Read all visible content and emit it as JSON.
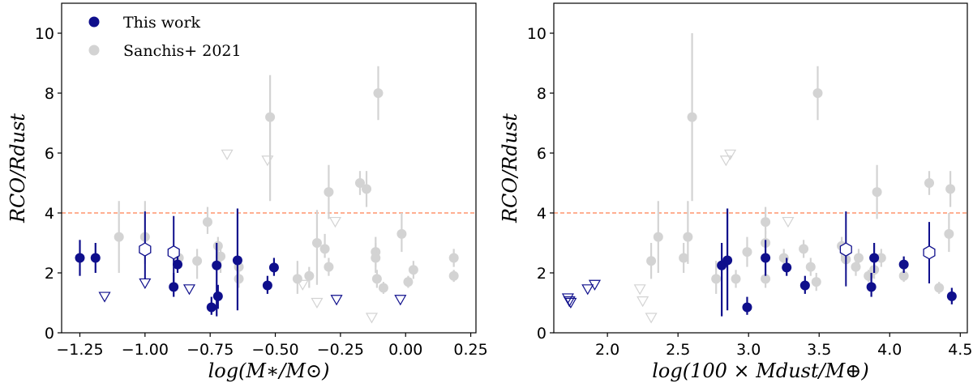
{
  "colors": {
    "this_work": "#0f0f8c",
    "sanchis": "#d3d3d3",
    "threshold": "#ff7f50"
  },
  "legend": {
    "this_work": "This work",
    "sanchis": "Sanchis+ 2021"
  },
  "chart_data": [
    {
      "type": "scatter",
      "xlabel": "log(M∗/M⊙)",
      "ylabel": "RCO/Rdust",
      "xlim": [
        -1.32,
        0.27
      ],
      "ylim": [
        0,
        11
      ],
      "xticks": [
        "-1.25",
        "-1.00",
        "-0.75",
        "-0.50",
        "-0.25",
        "0.00",
        "0.25"
      ],
      "xtick_values": [
        -1.25,
        -1.0,
        -0.75,
        -0.5,
        -0.25,
        0.0,
        0.25
      ],
      "yticks": [
        "0",
        "2",
        "4",
        "6",
        "8",
        "10"
      ],
      "ytick_values": [
        0,
        2,
        4,
        6,
        8,
        10
      ],
      "hline": 4,
      "series": [
        {
          "name": "This work",
          "points": [
            {
              "x": -1.25,
              "y": 2.5,
              "lo": 1.9,
              "hi": 3.1
            },
            {
              "x": -1.19,
              "y": 2.5,
              "lo": 2.0,
              "hi": 3.0
            },
            {
              "x": -0.89,
              "y": 1.53,
              "lo": 1.2,
              "hi": 2.0
            },
            {
              "x": -0.875,
              "y": 2.28,
              "lo": 2.0,
              "hi": 2.55
            },
            {
              "x": -0.745,
              "y": 0.85,
              "lo": 0.6,
              "hi": 1.2
            },
            {
              "x": -0.725,
              "y": 2.25,
              "lo": 0.55,
              "hi": 3.0
            },
            {
              "x": -0.72,
              "y": 1.22,
              "lo": 0.8,
              "hi": 1.6
            },
            {
              "x": -0.645,
              "y": 2.42,
              "lo": 0.75,
              "hi": 4.15
            },
            {
              "x": -0.53,
              "y": 1.58,
              "lo": 1.3,
              "hi": 1.9
            },
            {
              "x": -0.505,
              "y": 2.18,
              "lo": 1.9,
              "hi": 2.5
            }
          ],
          "open_hexagons": [
            {
              "x": -1.0,
              "y": 2.78,
              "lo": 1.8,
              "hi": 4.05
            },
            {
              "x": -0.89,
              "y": 2.68,
              "lo": 1.6,
              "hi": 3.9
            }
          ],
          "upper_limits": [
            {
              "x": -1.155,
              "y": 1.2
            },
            {
              "x": -1.0,
              "y": 1.65
            },
            {
              "x": -0.83,
              "y": 1.45
            },
            {
              "x": -0.265,
              "y": 1.1
            },
            {
              "x": -0.02,
              "y": 1.1
            }
          ]
        },
        {
          "name": "Sanchis+ 2021",
          "points": [
            {
              "x": -1.1,
              "y": 3.2,
              "lo": 2.0,
              "hi": 4.4
            },
            {
              "x": -1.0,
              "y": 3.2,
              "lo": 2.3,
              "hi": 4.4
            },
            {
              "x": -0.87,
              "y": 2.5,
              "lo": 2.2,
              "hi": 2.8
            },
            {
              "x": -0.8,
              "y": 2.4,
              "lo": 1.8,
              "hi": 2.8
            },
            {
              "x": -0.76,
              "y": 3.7,
              "lo": 3.3,
              "hi": 4.2
            },
            {
              "x": -0.72,
              "y": 2.9,
              "lo": 2.4,
              "hi": 3.2
            },
            {
              "x": -0.71,
              "y": 2.55,
              "lo": 2.0,
              "hi": 3.0
            },
            {
              "x": -0.64,
              "y": 2.2,
              "lo": 1.9,
              "hi": 2.5
            },
            {
              "x": -0.64,
              "y": 1.8,
              "lo": 1.5,
              "hi": 2.1
            },
            {
              "x": -0.52,
              "y": 7.2,
              "lo": 4.4,
              "hi": 8.6
            },
            {
              "x": -0.415,
              "y": 1.8,
              "lo": 1.3,
              "hi": 2.4
            },
            {
              "x": -0.37,
              "y": 1.9,
              "lo": 1.5,
              "hi": 2.2
            },
            {
              "x": -0.34,
              "y": 3.0,
              "lo": 1.6,
              "hi": 4.1
            },
            {
              "x": -0.31,
              "y": 2.8,
              "lo": 2.5,
              "hi": 3.3
            },
            {
              "x": -0.295,
              "y": 4.7,
              "lo": 3.8,
              "hi": 5.6
            },
            {
              "x": -0.295,
              "y": 2.2,
              "lo": 1.9,
              "hi": 2.5
            },
            {
              "x": -0.175,
              "y": 5.0,
              "lo": 4.6,
              "hi": 5.4
            },
            {
              "x": -0.15,
              "y": 4.8,
              "lo": 4.2,
              "hi": 5.4
            },
            {
              "x": -0.105,
              "y": 8.0,
              "lo": 7.1,
              "hi": 8.9
            },
            {
              "x": -0.115,
              "y": 2.7,
              "lo": 2.2,
              "hi": 3.2
            },
            {
              "x": -0.115,
              "y": 2.5,
              "lo": 2.0,
              "hi": 3.0
            },
            {
              "x": -0.11,
              "y": 1.8,
              "lo": 1.5,
              "hi": 2.1
            },
            {
              "x": -0.085,
              "y": 1.5,
              "lo": 1.3,
              "hi": 1.7
            },
            {
              "x": -0.015,
              "y": 3.3,
              "lo": 2.7,
              "hi": 4.0
            },
            {
              "x": 0.01,
              "y": 1.7,
              "lo": 1.5,
              "hi": 1.9
            },
            {
              "x": 0.03,
              "y": 2.1,
              "lo": 1.8,
              "hi": 2.4
            },
            {
              "x": 0.185,
              "y": 2.5,
              "lo": 2.2,
              "hi": 2.8
            },
            {
              "x": 0.185,
              "y": 1.9,
              "lo": 1.7,
              "hi": 2.1
            }
          ],
          "upper_limits": [
            {
              "x": -0.685,
              "y": 5.95
            },
            {
              "x": -0.53,
              "y": 5.75
            },
            {
              "x": -0.395,
              "y": 1.6
            },
            {
              "x": -0.34,
              "y": 1.0
            },
            {
              "x": -0.27,
              "y": 3.7
            },
            {
              "x": -0.13,
              "y": 0.5
            }
          ]
        }
      ]
    },
    {
      "type": "scatter",
      "xlabel": "log(100 × Mdust/M⊕)",
      "ylabel": "RCO/Rdust",
      "xlim": [
        1.62,
        4.55
      ],
      "ylim": [
        0,
        11
      ],
      "xticks": [
        "2.0",
        "2.5",
        "3.0",
        "3.5",
        "4.0",
        "4.5"
      ],
      "xtick_values": [
        2.0,
        2.5,
        3.0,
        3.5,
        4.0,
        4.5
      ],
      "yticks": [
        "0",
        "2",
        "4",
        "6",
        "8",
        "10"
      ],
      "ytick_values": [
        0,
        2,
        4,
        6,
        8,
        10
      ],
      "hline": 4,
      "series": [
        {
          "name": "This work",
          "points": [
            {
              "x": 2.81,
              "y": 2.25,
              "lo": 0.55,
              "hi": 3.0
            },
            {
              "x": 2.85,
              "y": 2.42,
              "lo": 0.75,
              "hi": 4.15
            },
            {
              "x": 2.99,
              "y": 0.85,
              "lo": 0.6,
              "hi": 1.2
            },
            {
              "x": 3.12,
              "y": 2.5,
              "lo": 1.9,
              "hi": 3.1
            },
            {
              "x": 3.27,
              "y": 2.18,
              "lo": 1.9,
              "hi": 2.5
            },
            {
              "x": 3.4,
              "y": 1.58,
              "lo": 1.3,
              "hi": 1.9
            },
            {
              "x": 3.87,
              "y": 1.53,
              "lo": 1.2,
              "hi": 2.0
            },
            {
              "x": 3.89,
              "y": 2.5,
              "lo": 2.0,
              "hi": 3.0
            },
            {
              "x": 4.1,
              "y": 2.28,
              "lo": 2.0,
              "hi": 2.55
            },
            {
              "x": 4.44,
              "y": 1.22,
              "lo": 0.95,
              "hi": 1.5
            }
          ],
          "open_hexagons": [
            {
              "x": 3.69,
              "y": 2.78,
              "lo": 1.55,
              "hi": 4.05
            },
            {
              "x": 4.28,
              "y": 2.68,
              "lo": 1.65,
              "hi": 3.7
            }
          ],
          "upper_limits": [
            {
              "x": 1.72,
              "y": 1.15
            },
            {
              "x": 1.73,
              "y": 1.05
            },
            {
              "x": 1.74,
              "y": 1.0
            },
            {
              "x": 1.86,
              "y": 1.45
            },
            {
              "x": 1.91,
              "y": 1.6
            }
          ]
        },
        {
          "name": "Sanchis+ 2021",
          "points": [
            {
              "x": 2.31,
              "y": 2.4,
              "lo": 1.8,
              "hi": 3.0
            },
            {
              "x": 2.36,
              "y": 3.2,
              "lo": 2.0,
              "hi": 4.4
            },
            {
              "x": 2.54,
              "y": 2.5,
              "lo": 2.0,
              "hi": 3.0
            },
            {
              "x": 2.57,
              "y": 3.2,
              "lo": 2.3,
              "hi": 4.4
            },
            {
              "x": 2.6,
              "y": 7.2,
              "lo": 4.4,
              "hi": 10.0
            },
            {
              "x": 2.77,
              "y": 1.8,
              "lo": 1.3,
              "hi": 2.4
            },
            {
              "x": 2.91,
              "y": 1.8,
              "lo": 1.5,
              "hi": 2.1
            },
            {
              "x": 2.99,
              "y": 2.7,
              "lo": 2.2,
              "hi": 3.2
            },
            {
              "x": 3.12,
              "y": 3.7,
              "lo": 3.3,
              "hi": 4.2
            },
            {
              "x": 3.12,
              "y": 3.0,
              "lo": 2.6,
              "hi": 3.4
            },
            {
              "x": 3.12,
              "y": 1.8,
              "lo": 1.5,
              "hi": 2.1
            },
            {
              "x": 3.25,
              "y": 2.5,
              "lo": 2.2,
              "hi": 2.8
            },
            {
              "x": 3.39,
              "y": 2.8,
              "lo": 2.5,
              "hi": 3.1
            },
            {
              "x": 3.44,
              "y": 2.2,
              "lo": 1.9,
              "hi": 2.5
            },
            {
              "x": 3.48,
              "y": 1.7,
              "lo": 1.4,
              "hi": 2.0
            },
            {
              "x": 3.49,
              "y": 8.0,
              "lo": 7.1,
              "hi": 8.9
            },
            {
              "x": 3.66,
              "y": 2.9,
              "lo": 2.4,
              "hi": 3.2
            },
            {
              "x": 3.69,
              "y": 2.45,
              "lo": 2.1,
              "hi": 2.8
            },
            {
              "x": 3.76,
              "y": 2.2,
              "lo": 1.9,
              "hi": 2.5
            },
            {
              "x": 3.78,
              "y": 2.5,
              "lo": 2.2,
              "hi": 2.8
            },
            {
              "x": 3.85,
              "y": 1.9,
              "lo": 1.7,
              "hi": 2.1
            },
            {
              "x": 3.89,
              "y": 2.1,
              "lo": 1.8,
              "hi": 2.4
            },
            {
              "x": 3.91,
              "y": 4.7,
              "lo": 3.8,
              "hi": 5.6
            },
            {
              "x": 3.94,
              "y": 2.5,
              "lo": 2.2,
              "hi": 2.8
            },
            {
              "x": 4.1,
              "y": 1.9,
              "lo": 1.7,
              "hi": 2.1
            },
            {
              "x": 4.28,
              "y": 5.0,
              "lo": 4.6,
              "hi": 5.4
            },
            {
              "x": 4.35,
              "y": 1.5,
              "lo": 1.3,
              "hi": 1.7
            },
            {
              "x": 4.42,
              "y": 3.3,
              "lo": 2.7,
              "hi": 4.0
            },
            {
              "x": 4.43,
              "y": 4.8,
              "lo": 4.2,
              "hi": 5.4
            }
          ],
          "upper_limits": [
            {
              "x": 2.23,
              "y": 1.45
            },
            {
              "x": 2.25,
              "y": 1.05
            },
            {
              "x": 2.31,
              "y": 0.5
            },
            {
              "x": 2.84,
              "y": 5.75
            },
            {
              "x": 2.87,
              "y": 5.95
            },
            {
              "x": 3.28,
              "y": 3.7
            }
          ]
        }
      ]
    }
  ]
}
